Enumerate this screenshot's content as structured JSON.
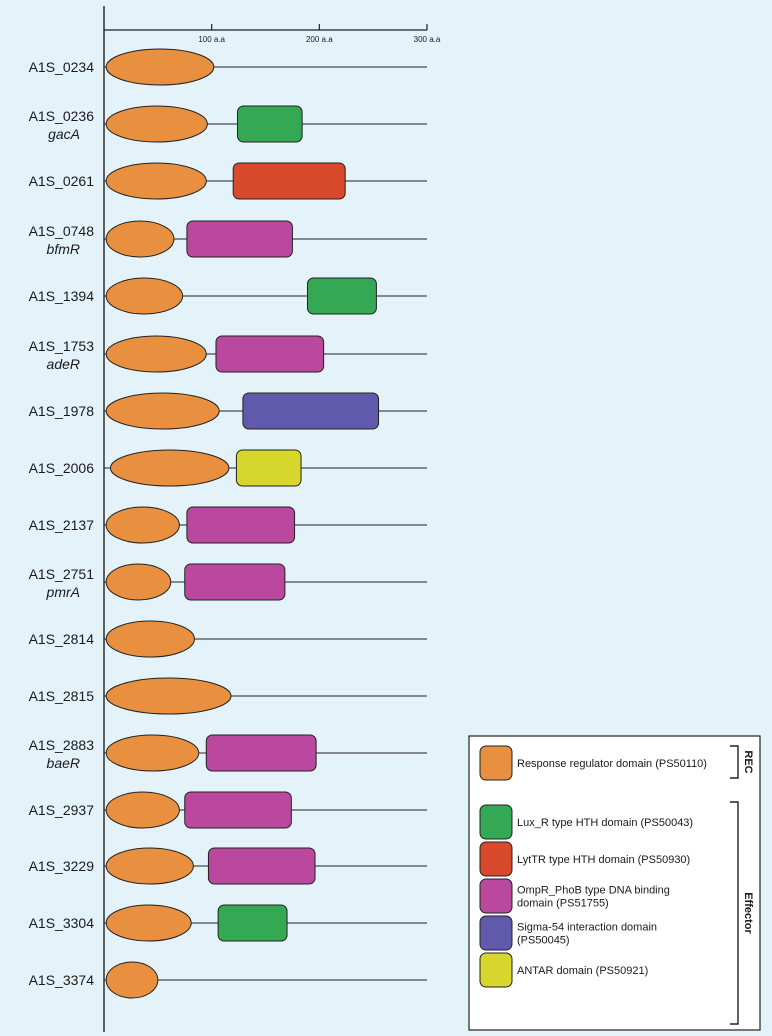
{
  "axis": {
    "ticks": [
      {
        "value": 100,
        "label": "100 a.a"
      },
      {
        "value": 200,
        "label": "200 a.a"
      },
      {
        "value": 300,
        "label": "300 a.a"
      }
    ],
    "max": 300
  },
  "domain_types": {
    "rr": {
      "color": "#e8903f",
      "label": "Response regulator domain (PS50110)"
    },
    "luxr": {
      "color": "#35a853",
      "label": "Lux_R type HTH domain (PS50043)"
    },
    "lyttr": {
      "color": "#d84a2b",
      "label": "LytTR type HTH domain (PS50930)"
    },
    "ompr": {
      "color": "#b9489e",
      "label": "OmpR_PhoB type DNA binding domain (PS51755)"
    },
    "sigma54": {
      "color": "#6159ab",
      "label": "Sigma-54 interaction domain (PS50045)"
    },
    "antar": {
      "color": "#d7d62d",
      "label": "ANTAR domain (PS50921)"
    }
  },
  "proteins": [
    {
      "id": "A1S_0234",
      "gene": "",
      "domains": [
        {
          "type": "rr",
          "start": 2,
          "end": 102
        }
      ]
    },
    {
      "id": "A1S_0236",
      "gene": "gacA",
      "domains": [
        {
          "type": "rr",
          "start": 2,
          "end": 96
        },
        {
          "type": "luxr",
          "start": 124,
          "end": 184
        }
      ]
    },
    {
      "id": "A1S_0261",
      "gene": "",
      "domains": [
        {
          "type": "rr",
          "start": 2,
          "end": 95
        },
        {
          "type": "lyttr",
          "start": 120,
          "end": 224
        }
      ]
    },
    {
      "id": "A1S_0748",
      "gene": "bfmR",
      "domains": [
        {
          "type": "rr",
          "start": 2,
          "end": 65
        },
        {
          "type": "ompr",
          "start": 77,
          "end": 175
        }
      ]
    },
    {
      "id": "A1S_1394",
      "gene": "",
      "domains": [
        {
          "type": "rr",
          "start": 2,
          "end": 73
        },
        {
          "type": "luxr",
          "start": 189,
          "end": 253
        }
      ]
    },
    {
      "id": "A1S_1753",
      "gene": "adeR",
      "domains": [
        {
          "type": "rr",
          "start": 2,
          "end": 95
        },
        {
          "type": "ompr",
          "start": 104,
          "end": 204
        }
      ]
    },
    {
      "id": "A1S_1978",
      "gene": "",
      "domains": [
        {
          "type": "rr",
          "start": 2,
          "end": 107
        },
        {
          "type": "sigma54",
          "start": 129,
          "end": 255
        }
      ]
    },
    {
      "id": "A1S_2006",
      "gene": "",
      "domains": [
        {
          "type": "rr",
          "start": 6,
          "end": 116
        },
        {
          "type": "antar",
          "start": 123,
          "end": 183
        }
      ]
    },
    {
      "id": "A1S_2137",
      "gene": "",
      "domains": [
        {
          "type": "rr",
          "start": 2,
          "end": 70
        },
        {
          "type": "ompr",
          "start": 77,
          "end": 177
        }
      ]
    },
    {
      "id": "A1S_2751",
      "gene": "pmrA",
      "domains": [
        {
          "type": "rr",
          "start": 2,
          "end": 62
        },
        {
          "type": "ompr",
          "start": 75,
          "end": 168
        }
      ]
    },
    {
      "id": "A1S_2814",
      "gene": "",
      "domains": [
        {
          "type": "rr",
          "start": 2,
          "end": 84
        }
      ]
    },
    {
      "id": "A1S_2815",
      "gene": "",
      "domains": [
        {
          "type": "rr",
          "start": 2,
          "end": 118
        }
      ]
    },
    {
      "id": "A1S_2883",
      "gene": "baeR",
      "domains": [
        {
          "type": "rr",
          "start": 2,
          "end": 88
        },
        {
          "type": "ompr",
          "start": 95,
          "end": 197
        }
      ]
    },
    {
      "id": "A1S_2937",
      "gene": "",
      "domains": [
        {
          "type": "rr",
          "start": 2,
          "end": 70
        },
        {
          "type": "ompr",
          "start": 75,
          "end": 174
        }
      ]
    },
    {
      "id": "A1S_3229",
      "gene": "",
      "domains": [
        {
          "type": "rr",
          "start": 2,
          "end": 83
        },
        {
          "type": "ompr",
          "start": 97,
          "end": 196
        }
      ]
    },
    {
      "id": "A1S_3304",
      "gene": "",
      "domains": [
        {
          "type": "rr",
          "start": 2,
          "end": 81
        },
        {
          "type": "luxr",
          "start": 106,
          "end": 170
        }
      ]
    },
    {
      "id": "A1S_3374",
      "gene": "",
      "domains": [
        {
          "type": "rr",
          "start": 2,
          "end": 50
        }
      ]
    }
  ],
  "legend": {
    "items": [
      {
        "type": "rr",
        "lines": [
          "Response regulator domain (PS50110)"
        ]
      },
      {
        "type": "luxr",
        "lines": [
          "Lux_R type HTH domain (PS50043)"
        ]
      },
      {
        "type": "lyttr",
        "lines": [
          "LytTR type HTH domain (PS50930)"
        ]
      },
      {
        "type": "ompr",
        "lines": [
          "OmpR_PhoB type DNA binding",
          "domain (PS51755)"
        ]
      },
      {
        "type": "sigma54",
        "lines": [
          "Sigma-54 interaction domain",
          "(PS50045)"
        ]
      },
      {
        "type": "antar",
        "lines": [
          "ANTAR domain (PS50921)"
        ]
      }
    ],
    "groups": {
      "rec": "REC",
      "effector": "Effector"
    }
  }
}
